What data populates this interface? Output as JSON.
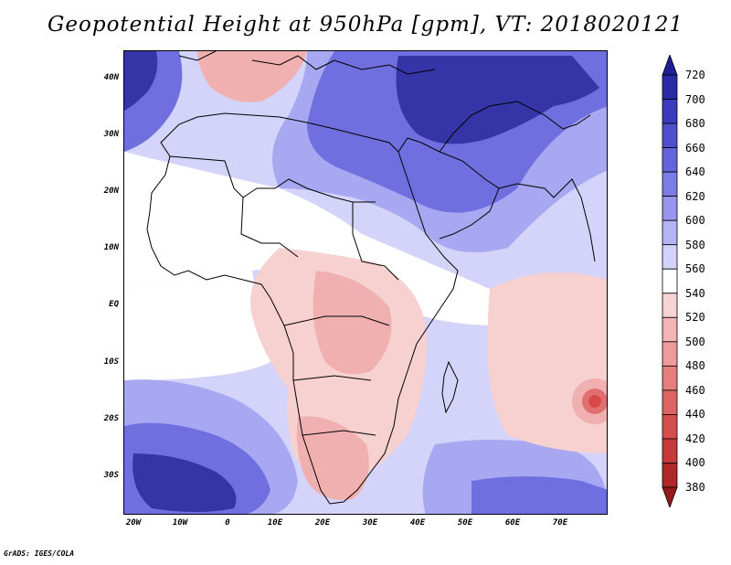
{
  "title": "Geopotential Height at 950hPa [gpm], VT: 2018020121",
  "footer": "GrADS: IGES/COLA",
  "lat_labels": [
    "40N",
    "30N",
    "20N",
    "10N",
    "EQ",
    "10S",
    "20S",
    "30S"
  ],
  "lon_labels": [
    "20W",
    "10W",
    "0",
    "10E",
    "20E",
    "30E",
    "40E",
    "50E",
    "60E",
    "70E"
  ],
  "colorbar": {
    "levels": [
      "720",
      "700",
      "680",
      "660",
      "640",
      "620",
      "600",
      "580",
      "560",
      "540",
      "520",
      "500",
      "480",
      "460",
      "440",
      "420",
      "400",
      "380"
    ],
    "colors": [
      "#1e1e96",
      "#2a2aa8",
      "#3b3bbf",
      "#4e4ecf",
      "#6464dc",
      "#7c7ce6",
      "#9696ee",
      "#b4b4f4",
      "#d2d2fa",
      "#ffffff",
      "#f7d2d2",
      "#f2b4b4",
      "#ec9a9a",
      "#e67e7e",
      "#de6464",
      "#d44c4c",
      "#c83a3a",
      "#b02828",
      "#961818"
    ]
  },
  "map": {
    "region": "Africa",
    "lon_range": [
      "20W",
      "80E"
    ],
    "lat_range": [
      "37S",
      "45N"
    ],
    "colors": {
      "strong_high": "#3535a8",
      "high": "#6f6fdf",
      "mid_high": "#a8a8f2",
      "low_high": "#d4d4fa",
      "neutral": "#ffffff",
      "low": "#f7d0d0",
      "lower": "#f0b0b0",
      "lowest": "#d84a4a",
      "coast": "#000000"
    }
  }
}
